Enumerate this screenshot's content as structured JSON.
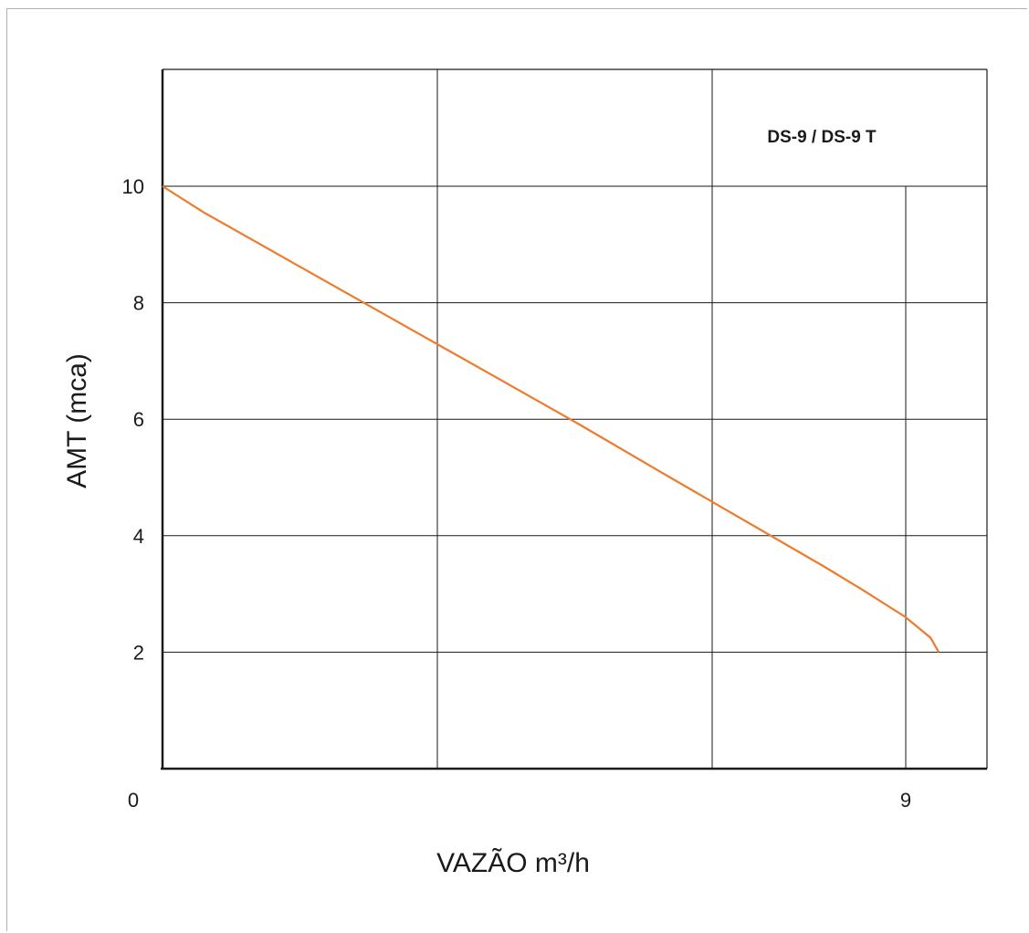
{
  "chart_data": {
    "type": "line",
    "title": "",
    "xlabel": "VAZÃO m³/h",
    "ylabel": "AMT (mca)",
    "xlim": [
      0,
      10
    ],
    "ylim": [
      0,
      12
    ],
    "x_ticks": [
      {
        "value": 0,
        "label": "0"
      },
      {
        "value": 9,
        "label": "9"
      }
    ],
    "y_ticks": [
      {
        "value": 2,
        "label": "2"
      },
      {
        "value": 4,
        "label": "4"
      },
      {
        "value": 6,
        "label": "6"
      },
      {
        "value": 8,
        "label": "8"
      },
      {
        "value": 10,
        "label": "10"
      }
    ],
    "grid": true,
    "series": [
      {
        "name": "DS-9 / DS-9 T",
        "color": "#ee7a2a",
        "x": [
          0,
          0.5,
          1,
          1.5,
          2,
          3,
          4,
          5,
          6,
          7,
          8,
          8.5,
          9,
          9.3,
          9.4
        ],
        "y": [
          10,
          9.55,
          9.15,
          8.75,
          8.35,
          7.55,
          6.75,
          5.95,
          5.12,
          4.3,
          3.48,
          3.05,
          2.6,
          2.25,
          2.0
        ]
      }
    ]
  }
}
